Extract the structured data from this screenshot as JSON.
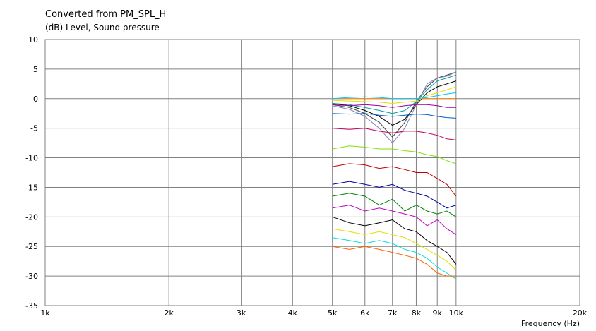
{
  "chart_data": {
    "type": "line",
    "title": "Converted from PM_SPL_H",
    "subtitle": "(dB)  Level, Sound pressure",
    "xlabel": "Frequency  (Hz)",
    "xscale": "log",
    "xlim": [
      1000,
      20000
    ],
    "ylim": [
      -35,
      10
    ],
    "grid": true,
    "legend": "none",
    "x_ticks": [
      {
        "value": 1000,
        "label": "1k"
      },
      {
        "value": 2000,
        "label": "2k"
      },
      {
        "value": 3000,
        "label": "3k"
      },
      {
        "value": 4000,
        "label": "4k"
      },
      {
        "value": 5000,
        "label": "5k"
      },
      {
        "value": 6000,
        "label": "6k"
      },
      {
        "value": 7000,
        "label": "7k"
      },
      {
        "value": 8000,
        "label": "8k"
      },
      {
        "value": 9000,
        "label": "9k"
      },
      {
        "value": 10000,
        "label": "10k"
      },
      {
        "value": 20000,
        "label": "20k"
      }
    ],
    "y_ticks": [
      {
        "value": 10,
        "label": "10"
      },
      {
        "value": 5,
        "label": "5"
      },
      {
        "value": 0,
        "label": "0"
      },
      {
        "value": -5,
        "label": "-5"
      },
      {
        "value": -10,
        "label": "-10"
      },
      {
        "value": -15,
        "label": "-15"
      },
      {
        "value": -20,
        "label": "-20"
      },
      {
        "value": -25,
        "label": "-25"
      },
      {
        "value": -30,
        "label": "-30"
      },
      {
        "value": -35,
        "label": "-35"
      }
    ],
    "x": [
      5000,
      5500,
      6000,
      6500,
      7000,
      7500,
      8000,
      8500,
      9000,
      9500,
      10000
    ],
    "series": [
      {
        "color": "#ff8000",
        "values": [
          0.0,
          0.0,
          0.0,
          0.0,
          0.0,
          0.0,
          0.0,
          0.0,
          0.0,
          0.0,
          0.0
        ]
      },
      {
        "color": "#000000",
        "values": [
          -0.8,
          -1.2,
          -2.0,
          -3.0,
          -4.5,
          -3.5,
          -1.0,
          1.0,
          2.0,
          2.5,
          3.0
        ]
      },
      {
        "color": "#404040",
        "values": [
          -1.0,
          -1.5,
          -2.5,
          -4.0,
          -6.5,
          -4.0,
          -0.5,
          2.0,
          3.5,
          4.0,
          4.5
        ]
      },
      {
        "color": "#8080c0",
        "values": [
          -1.2,
          -1.8,
          -3.0,
          -5.0,
          -7.5,
          -5.0,
          -1.0,
          2.5,
          3.5,
          3.8,
          4.5
        ]
      },
      {
        "color": "#00a0a0",
        "values": [
          -0.8,
          -1.0,
          -1.5,
          -2.0,
          -2.5,
          -2.0,
          -0.5,
          1.5,
          3.0,
          3.5,
          4.0
        ]
      },
      {
        "color": "#e0e000",
        "values": [
          -0.3,
          -0.4,
          -0.5,
          -0.6,
          -0.8,
          -0.6,
          -0.4,
          0.5,
          1.0,
          1.5,
          2.0
        ]
      },
      {
        "color": "#00c0ff",
        "values": [
          0.0,
          0.2,
          0.3,
          0.2,
          0.0,
          0.0,
          0.0,
          0.2,
          0.5,
          0.8,
          1.0
        ]
      },
      {
        "color": "#a000a0",
        "values": [
          -1.0,
          -1.2,
          -1.0,
          -1.2,
          -1.5,
          -1.2,
          -1.0,
          -1.0,
          -1.2,
          -1.5,
          -1.5
        ]
      },
      {
        "color": "#0060c0",
        "values": [
          -2.5,
          -2.6,
          -2.5,
          -2.8,
          -3.0,
          -2.8,
          -2.6,
          -2.7,
          -3.0,
          -3.2,
          -3.3
        ]
      },
      {
        "color": "#c00060",
        "values": [
          -5.0,
          -5.2,
          -5.0,
          -5.5,
          -5.8,
          -5.5,
          -5.5,
          -5.8,
          -6.2,
          -6.8,
          -7.0
        ]
      },
      {
        "color": "#80e000",
        "values": [
          -8.5,
          -8.0,
          -8.2,
          -8.5,
          -8.5,
          -8.8,
          -9.0,
          -9.5,
          -9.8,
          -10.5,
          -11.0
        ]
      },
      {
        "color": "#c00000",
        "values": [
          -11.5,
          -11.0,
          -11.2,
          -11.8,
          -11.5,
          -12.0,
          -12.5,
          -12.5,
          -13.5,
          -14.5,
          -16.5
        ]
      },
      {
        "color": "#0000a0",
        "values": [
          -14.5,
          -14.0,
          -14.5,
          -15.0,
          -14.5,
          -15.5,
          -16.0,
          -16.5,
          -17.5,
          -18.5,
          -18.0
        ]
      },
      {
        "color": "#008000",
        "values": [
          -16.5,
          -16.0,
          -16.5,
          -18.0,
          -17.0,
          -19.0,
          -18.0,
          -19.0,
          -19.5,
          -19.0,
          -20.0
        ]
      },
      {
        "color": "#c000c0",
        "values": [
          -18.5,
          -18.0,
          -19.0,
          -18.5,
          -19.0,
          -19.5,
          -20.0,
          -21.5,
          -20.5,
          -22.0,
          -23.0
        ]
      },
      {
        "color": "#000000",
        "values": [
          -20.0,
          -21.0,
          -21.5,
          -21.0,
          -20.5,
          -22.0,
          -22.5,
          -24.0,
          -25.0,
          -26.0,
          -28.0
        ]
      },
      {
        "color": "#e0e000",
        "values": [
          -22.0,
          -22.5,
          -23.0,
          -22.5,
          -23.0,
          -23.5,
          -24.5,
          -25.5,
          -26.5,
          -27.5,
          -29.0
        ]
      },
      {
        "color": "#00e0e0",
        "values": [
          -23.5,
          -24.0,
          -24.5,
          -24.0,
          -24.5,
          -25.5,
          -26.0,
          -27.0,
          -28.5,
          -29.5,
          -30.5
        ]
      },
      {
        "color": "#ff6000",
        "values": [
          -25.0,
          -25.5,
          -25.0,
          -25.5,
          -26.0,
          -26.5,
          -27.0,
          -28.0,
          -29.5,
          -30.0,
          -30.0
        ]
      }
    ]
  }
}
